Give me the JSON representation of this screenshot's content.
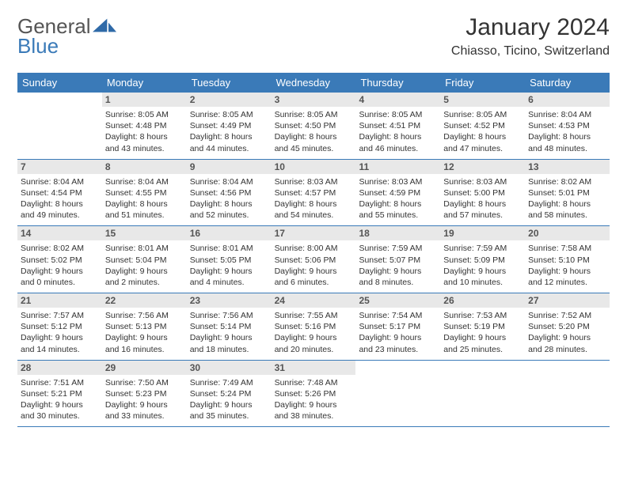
{
  "brand": {
    "text_general": "General",
    "text_blue": "Blue",
    "logo_fill": "#2f6aa8"
  },
  "header": {
    "month_title": "January 2024",
    "location": "Chiasso, Ticino, Switzerland"
  },
  "colors": {
    "header_bg": "#3a7ab8",
    "header_fg": "#ffffff",
    "date_bar_bg": "#e8e8e8",
    "week_border": "#3a7ab8",
    "text": "#333333"
  },
  "day_labels": [
    "Sunday",
    "Monday",
    "Tuesday",
    "Wednesday",
    "Thursday",
    "Friday",
    "Saturday"
  ],
  "weeks": [
    [
      {
        "date": "",
        "sunrise": "",
        "sunset": "",
        "daylight": ""
      },
      {
        "date": "1",
        "sunrise": "Sunrise: 8:05 AM",
        "sunset": "Sunset: 4:48 PM",
        "daylight": "Daylight: 8 hours and 43 minutes."
      },
      {
        "date": "2",
        "sunrise": "Sunrise: 8:05 AM",
        "sunset": "Sunset: 4:49 PM",
        "daylight": "Daylight: 8 hours and 44 minutes."
      },
      {
        "date": "3",
        "sunrise": "Sunrise: 8:05 AM",
        "sunset": "Sunset: 4:50 PM",
        "daylight": "Daylight: 8 hours and 45 minutes."
      },
      {
        "date": "4",
        "sunrise": "Sunrise: 8:05 AM",
        "sunset": "Sunset: 4:51 PM",
        "daylight": "Daylight: 8 hours and 46 minutes."
      },
      {
        "date": "5",
        "sunrise": "Sunrise: 8:05 AM",
        "sunset": "Sunset: 4:52 PM",
        "daylight": "Daylight: 8 hours and 47 minutes."
      },
      {
        "date": "6",
        "sunrise": "Sunrise: 8:04 AM",
        "sunset": "Sunset: 4:53 PM",
        "daylight": "Daylight: 8 hours and 48 minutes."
      }
    ],
    [
      {
        "date": "7",
        "sunrise": "Sunrise: 8:04 AM",
        "sunset": "Sunset: 4:54 PM",
        "daylight": "Daylight: 8 hours and 49 minutes."
      },
      {
        "date": "8",
        "sunrise": "Sunrise: 8:04 AM",
        "sunset": "Sunset: 4:55 PM",
        "daylight": "Daylight: 8 hours and 51 minutes."
      },
      {
        "date": "9",
        "sunrise": "Sunrise: 8:04 AM",
        "sunset": "Sunset: 4:56 PM",
        "daylight": "Daylight: 8 hours and 52 minutes."
      },
      {
        "date": "10",
        "sunrise": "Sunrise: 8:03 AM",
        "sunset": "Sunset: 4:57 PM",
        "daylight": "Daylight: 8 hours and 54 minutes."
      },
      {
        "date": "11",
        "sunrise": "Sunrise: 8:03 AM",
        "sunset": "Sunset: 4:59 PM",
        "daylight": "Daylight: 8 hours and 55 minutes."
      },
      {
        "date": "12",
        "sunrise": "Sunrise: 8:03 AM",
        "sunset": "Sunset: 5:00 PM",
        "daylight": "Daylight: 8 hours and 57 minutes."
      },
      {
        "date": "13",
        "sunrise": "Sunrise: 8:02 AM",
        "sunset": "Sunset: 5:01 PM",
        "daylight": "Daylight: 8 hours and 58 minutes."
      }
    ],
    [
      {
        "date": "14",
        "sunrise": "Sunrise: 8:02 AM",
        "sunset": "Sunset: 5:02 PM",
        "daylight": "Daylight: 9 hours and 0 minutes."
      },
      {
        "date": "15",
        "sunrise": "Sunrise: 8:01 AM",
        "sunset": "Sunset: 5:04 PM",
        "daylight": "Daylight: 9 hours and 2 minutes."
      },
      {
        "date": "16",
        "sunrise": "Sunrise: 8:01 AM",
        "sunset": "Sunset: 5:05 PM",
        "daylight": "Daylight: 9 hours and 4 minutes."
      },
      {
        "date": "17",
        "sunrise": "Sunrise: 8:00 AM",
        "sunset": "Sunset: 5:06 PM",
        "daylight": "Daylight: 9 hours and 6 minutes."
      },
      {
        "date": "18",
        "sunrise": "Sunrise: 7:59 AM",
        "sunset": "Sunset: 5:07 PM",
        "daylight": "Daylight: 9 hours and 8 minutes."
      },
      {
        "date": "19",
        "sunrise": "Sunrise: 7:59 AM",
        "sunset": "Sunset: 5:09 PM",
        "daylight": "Daylight: 9 hours and 10 minutes."
      },
      {
        "date": "20",
        "sunrise": "Sunrise: 7:58 AM",
        "sunset": "Sunset: 5:10 PM",
        "daylight": "Daylight: 9 hours and 12 minutes."
      }
    ],
    [
      {
        "date": "21",
        "sunrise": "Sunrise: 7:57 AM",
        "sunset": "Sunset: 5:12 PM",
        "daylight": "Daylight: 9 hours and 14 minutes."
      },
      {
        "date": "22",
        "sunrise": "Sunrise: 7:56 AM",
        "sunset": "Sunset: 5:13 PM",
        "daylight": "Daylight: 9 hours and 16 minutes."
      },
      {
        "date": "23",
        "sunrise": "Sunrise: 7:56 AM",
        "sunset": "Sunset: 5:14 PM",
        "daylight": "Daylight: 9 hours and 18 minutes."
      },
      {
        "date": "24",
        "sunrise": "Sunrise: 7:55 AM",
        "sunset": "Sunset: 5:16 PM",
        "daylight": "Daylight: 9 hours and 20 minutes."
      },
      {
        "date": "25",
        "sunrise": "Sunrise: 7:54 AM",
        "sunset": "Sunset: 5:17 PM",
        "daylight": "Daylight: 9 hours and 23 minutes."
      },
      {
        "date": "26",
        "sunrise": "Sunrise: 7:53 AM",
        "sunset": "Sunset: 5:19 PM",
        "daylight": "Daylight: 9 hours and 25 minutes."
      },
      {
        "date": "27",
        "sunrise": "Sunrise: 7:52 AM",
        "sunset": "Sunset: 5:20 PM",
        "daylight": "Daylight: 9 hours and 28 minutes."
      }
    ],
    [
      {
        "date": "28",
        "sunrise": "Sunrise: 7:51 AM",
        "sunset": "Sunset: 5:21 PM",
        "daylight": "Daylight: 9 hours and 30 minutes."
      },
      {
        "date": "29",
        "sunrise": "Sunrise: 7:50 AM",
        "sunset": "Sunset: 5:23 PM",
        "daylight": "Daylight: 9 hours and 33 minutes."
      },
      {
        "date": "30",
        "sunrise": "Sunrise: 7:49 AM",
        "sunset": "Sunset: 5:24 PM",
        "daylight": "Daylight: 9 hours and 35 minutes."
      },
      {
        "date": "31",
        "sunrise": "Sunrise: 7:48 AM",
        "sunset": "Sunset: 5:26 PM",
        "daylight": "Daylight: 9 hours and 38 minutes."
      },
      {
        "date": "",
        "sunrise": "",
        "sunset": "",
        "daylight": ""
      },
      {
        "date": "",
        "sunrise": "",
        "sunset": "",
        "daylight": ""
      },
      {
        "date": "",
        "sunrise": "",
        "sunset": "",
        "daylight": ""
      }
    ]
  ]
}
